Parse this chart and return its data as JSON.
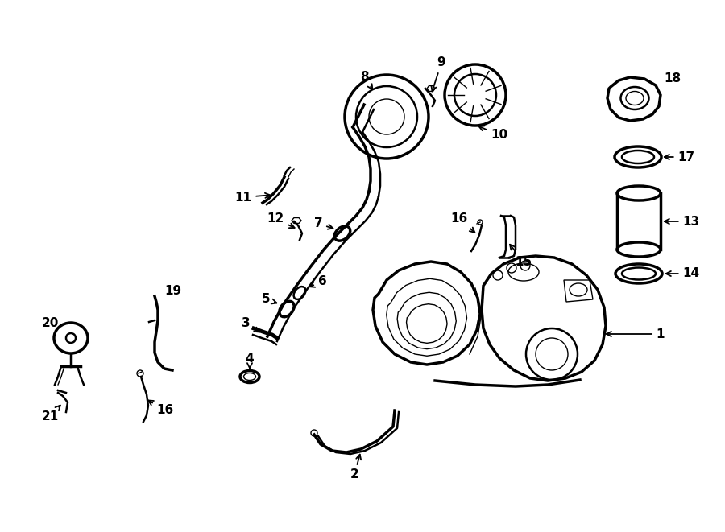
{
  "bg_color": "#ffffff",
  "line_color": "#000000",
  "figsize": [
    9.0,
    6.61
  ],
  "dpi": 100,
  "lw_main": 1.8,
  "lw_thin": 1.0,
  "lw_thick": 2.5,
  "label_fs": 11
}
